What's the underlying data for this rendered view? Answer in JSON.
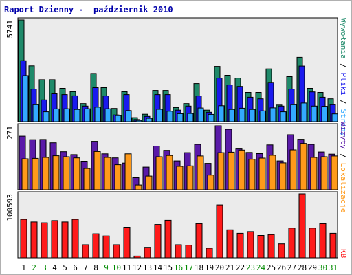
{
  "title": "Raport Dzienny -  październik 2010",
  "colors": {
    "wywolania": "#1f8a6a",
    "pliki": "#1a1aee",
    "strony": "#33aaff",
    "wizyty": "#5a1aa8",
    "lokalizacje": "#ff9a1a",
    "kb": "#ff1a1a",
    "weekend_day": "#008a00",
    "weekday": "#000000",
    "panel_bg": "#ebebeb"
  },
  "right_labels": {
    "wywolania": "Wywołania",
    "sep1": "/",
    "pliki": "Pliki",
    "sep2": "/",
    "strony": "Strony",
    "sep3": "/",
    "wizyty": "Wizyty",
    "sep4": "/",
    "lokalizacje": "Lokalizacje",
    "kb": "KB"
  },
  "chart_data": [
    {
      "type": "bar",
      "panel": "hits",
      "ymax_label": "5741",
      "ylim": [
        0,
        5741
      ],
      "categories": [
        "1",
        "2",
        "3",
        "4",
        "5",
        "6",
        "7",
        "8",
        "9",
        "10",
        "11",
        "12",
        "13",
        "14",
        "15",
        "16",
        "17",
        "18",
        "19",
        "20",
        "21",
        "22",
        "23",
        "24",
        "25",
        "26",
        "27",
        "28",
        "29",
        "30",
        "31"
      ],
      "series": [
        {
          "name": "Wywołania",
          "values": [
            5741,
            3150,
            2370,
            2370,
            1880,
            1690,
            1020,
            2720,
            1920,
            750,
            1690,
            230,
            420,
            1760,
            1760,
            800,
            1020,
            2150,
            650,
            3120,
            2620,
            2460,
            1650,
            1650,
            2980,
            940,
            2540,
            3630,
            1880,
            1650,
            1290
          ]
        },
        {
          "name": "Pliki",
          "values": [
            3440,
            1840,
            1230,
            1610,
            1530,
            1460,
            880,
            1920,
            1450,
            380,
            1530,
            120,
            300,
            1530,
            1530,
            650,
            880,
            1450,
            530,
            2460,
            2070,
            1990,
            1380,
            1290,
            2220,
            880,
            1840,
            3140,
            1680,
            1380,
            960
          ]
        },
        {
          "name": "Strony",
          "values": [
            2600,
            960,
            560,
            720,
            730,
            690,
            730,
            820,
            730,
            340,
            630,
            70,
            190,
            700,
            590,
            450,
            460,
            770,
            410,
            900,
            690,
            760,
            690,
            610,
            780,
            560,
            960,
            1050,
            880,
            870,
            440
          ]
        }
      ]
    },
    {
      "type": "bar",
      "panel": "visits",
      "ymax_label": "271",
      "ylim": [
        0,
        271
      ],
      "categories": [
        "1",
        "2",
        "3",
        "4",
        "5",
        "6",
        "7",
        "8",
        "9",
        "10",
        "11",
        "12",
        "13",
        "14",
        "15",
        "16",
        "17",
        "18",
        "19",
        "20",
        "21",
        "22",
        "23",
        "24",
        "25",
        "26",
        "27",
        "28",
        "29",
        "30",
        "31"
      ],
      "series": [
        {
          "name": "Wizyty",
          "values": [
            227,
            212,
            213,
            199,
            161,
            149,
            121,
            205,
            152,
            135,
            113,
            51,
            96,
            185,
            167,
            122,
            157,
            192,
            112,
            271,
            256,
            173,
            158,
            153,
            190,
            122,
            233,
            214,
            192,
            160,
            151
          ]
        },
        {
          "name": "Lokalizacje",
          "values": [
            131,
            133,
            137,
            144,
            140,
            135,
            90,
            162,
            137,
            106,
            152,
            20,
            58,
            140,
            145,
            99,
            101,
            143,
            62,
            157,
            159,
            168,
            129,
            134,
            146,
            114,
            169,
            196,
            137,
            140,
            143
          ]
        }
      ]
    },
    {
      "type": "bar",
      "panel": "kb",
      "ymax_label": "100593",
      "ylim": [
        0,
        100593
      ],
      "categories": [
        "1",
        "2",
        "3",
        "4",
        "5",
        "6",
        "7",
        "8",
        "9",
        "10",
        "11",
        "12",
        "13",
        "14",
        "15",
        "16",
        "17",
        "18",
        "19",
        "20",
        "21",
        "22",
        "23",
        "24",
        "25",
        "26",
        "27",
        "28",
        "29",
        "30",
        "31"
      ],
      "series": [
        {
          "name": "KB",
          "values": [
            60500,
            56400,
            55100,
            58500,
            56400,
            60500,
            20600,
            37800,
            34400,
            20600,
            48100,
            2800,
            16500,
            52300,
            59100,
            20600,
            19900,
            53700,
            15100,
            83200,
            44000,
            38500,
            41200,
            35100,
            36500,
            22000,
            46700,
            100593,
            46700,
            53700,
            38500
          ]
        }
      ]
    }
  ]
}
